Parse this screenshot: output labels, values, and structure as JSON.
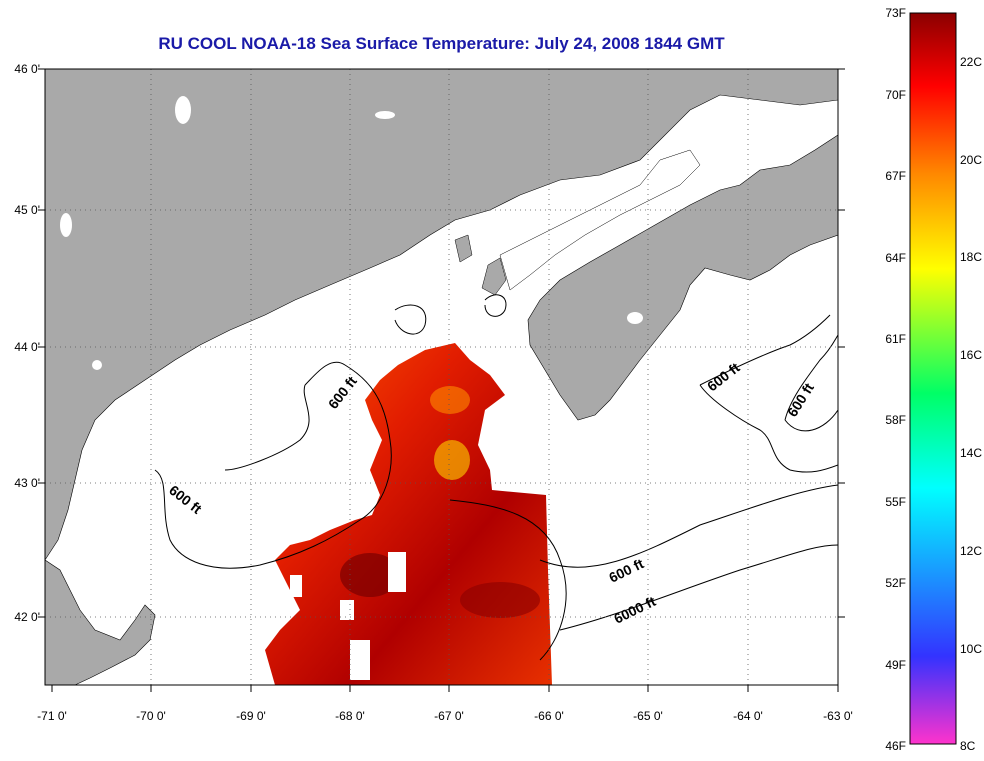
{
  "title": "RU COOL  NOAA-18  Sea Surface Temperature:  July 24, 2008 1844 GMT",
  "map": {
    "land_color": "#a9a9a9",
    "water_color": "#ffffff",
    "lat_labels": [
      "46 0'",
      "45 0'",
      "44 0'",
      "43 0'",
      "42 0'"
    ],
    "lon_labels": [
      "-71 0'",
      "-70 0'",
      "-69 0'",
      "-68 0'",
      "-67 0'",
      "-66 0'",
      "-65 0'",
      "-64 0'",
      "-63 0'"
    ],
    "contour_labels": [
      "600 ft",
      "600 ft",
      "600 ft",
      "600 ft",
      "600 ft",
      "6000 ft"
    ]
  },
  "colorbar": {
    "colors": [
      "#ff33cc",
      "#3333ff",
      "#00ffff",
      "#00ff66",
      "#ffff00",
      "#ff8800",
      "#ff0000",
      "#8b0000"
    ],
    "f_labels": [
      "73F",
      "70F",
      "67F",
      "64F",
      "61F",
      "58F",
      "55F",
      "52F",
      "49F",
      "46F"
    ],
    "c_labels": [
      "22C",
      "20C",
      "18C",
      "16C",
      "14C",
      "12C",
      "10C",
      "8C"
    ]
  }
}
